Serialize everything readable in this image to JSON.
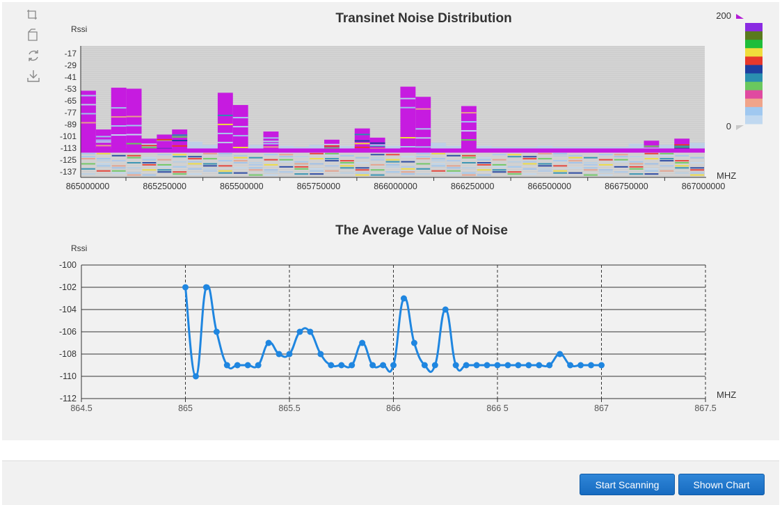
{
  "toolbox": {
    "icons": [
      "zoom-icon",
      "zoom-reset-icon",
      "restore-icon",
      "save-image-icon"
    ]
  },
  "colors": {
    "panel_bg": "#f1f1f1",
    "heat_bg": "#cdcdcd",
    "line_series": "#1f86e0",
    "button_bg": "#1d74c9",
    "heat_peak": "#c61be0"
  },
  "visual_map": {
    "max_label": "200",
    "min_label": "0",
    "colors": [
      "#8a2be2",
      "#5a7a1e",
      "#1ebd3a",
      "#f0dd3c",
      "#e8382c",
      "#1e3fa0",
      "#2a8fb0",
      "#6ac85e",
      "#e04aa0",
      "#f0a48a",
      "#a0c8f0",
      "#c0d8f0"
    ]
  },
  "chart_data": [
    {
      "type": "heatmap",
      "title": "Transinet Noise Distribution",
      "ylabel": "Rssi",
      "xlabel": "MHZ",
      "x_tick_labels": [
        "865000000",
        "865250000",
        "865500000",
        "865750000",
        "866000000",
        "866250000",
        "866500000",
        "866750000",
        "867000000"
      ],
      "y_tick_labels": [
        "-17",
        "-29",
        "-41",
        "-53",
        "-65",
        "-77",
        "-89",
        "-101",
        "-113",
        "-125",
        "-137"
      ],
      "x_range": [
        865.0,
        867.05
      ],
      "y_range": [
        -140,
        -11
      ],
      "baseline_rssi": -113,
      "bins": [
        {
          "f": 865.0,
          "top": -55
        },
        {
          "f": 865.05,
          "top": -93
        },
        {
          "f": 865.1,
          "top": -52
        },
        {
          "f": 865.15,
          "top": -53
        },
        {
          "f": 865.2,
          "top": -102
        },
        {
          "f": 865.25,
          "top": -98
        },
        {
          "f": 865.3,
          "top": -93
        },
        {
          "f": 865.35,
          "top": -105
        },
        {
          "f": 865.4,
          "top": -108
        },
        {
          "f": 865.45,
          "top": -57
        },
        {
          "f": 865.5,
          "top": -69
        },
        {
          "f": 865.55,
          "top": -108
        },
        {
          "f": 865.6,
          "top": -95
        },
        {
          "f": 865.65,
          "top": -109
        },
        {
          "f": 865.7,
          "top": -110
        },
        {
          "f": 865.75,
          "top": -108
        },
        {
          "f": 865.8,
          "top": -103
        },
        {
          "f": 865.85,
          "top": -109
        },
        {
          "f": 865.9,
          "top": -92
        },
        {
          "f": 865.95,
          "top": -101
        },
        {
          "f": 866.0,
          "top": -109
        },
        {
          "f": 866.05,
          "top": -51
        },
        {
          "f": 866.1,
          "top": -61
        },
        {
          "f": 866.15,
          "top": -106
        },
        {
          "f": 866.2,
          "top": -109
        },
        {
          "f": 866.25,
          "top": -70
        },
        {
          "f": 866.3,
          "top": -109
        },
        {
          "f": 866.35,
          "top": -110
        },
        {
          "f": 866.4,
          "top": -110
        },
        {
          "f": 866.45,
          "top": -110
        },
        {
          "f": 866.5,
          "top": -109
        },
        {
          "f": 866.55,
          "top": -110
        },
        {
          "f": 866.6,
          "top": -110
        },
        {
          "f": 866.65,
          "top": -110
        },
        {
          "f": 866.7,
          "top": -110
        },
        {
          "f": 866.75,
          "top": -110
        },
        {
          "f": 866.8,
          "top": -107
        },
        {
          "f": 866.85,
          "top": -104
        },
        {
          "f": 866.9,
          "top": -108
        },
        {
          "f": 866.95,
          "top": -102
        },
        {
          "f": 867.0,
          "top": -106
        }
      ]
    },
    {
      "type": "line",
      "title": "The Average Value of Noise",
      "ylabel": "Rssi",
      "xlabel": "MHZ",
      "x_tick_labels": [
        "864.5",
        "865",
        "865.5",
        "866",
        "866 5",
        "867",
        "867.5"
      ],
      "x_ticks": [
        864.5,
        865,
        865.5,
        866,
        866.5,
        867,
        867.5
      ],
      "y_ticks": [
        -100,
        -102,
        -104,
        -106,
        -108,
        -110,
        -112
      ],
      "xlim": [
        864.5,
        867.5
      ],
      "ylim": [
        -112,
        -100
      ],
      "grid": true,
      "x": [
        865.0,
        865.05,
        865.1,
        865.15,
        865.2,
        865.25,
        865.3,
        865.35,
        865.4,
        865.45,
        865.5,
        865.55,
        865.6,
        865.65,
        865.7,
        865.75,
        865.8,
        865.85,
        865.9,
        865.95,
        866.0,
        866.05,
        866.1,
        866.15,
        866.2,
        866.25,
        866.3,
        866.35,
        866.4,
        866.45,
        866.5,
        866.55,
        866.6,
        866.65,
        866.7,
        866.75,
        866.8,
        866.85,
        866.9,
        866.95,
        867.0
      ],
      "series": [
        {
          "name": "Average Noise",
          "values": [
            -102,
            -110,
            -102,
            -106,
            -109,
            -109,
            -109,
            -109,
            -107,
            -108,
            -108,
            -106,
            -106,
            -108,
            -109,
            -109,
            -109,
            -107,
            -109,
            -109,
            -109,
            -103,
            -107,
            -109,
            -109,
            -104,
            -109,
            -109,
            -109,
            -109,
            -109,
            -109,
            -109,
            -109,
            -109,
            -109,
            -108,
            -109,
            -109,
            -109,
            -109
          ]
        }
      ]
    }
  ],
  "buttons": {
    "start_label": "Start Scanning",
    "shown_label": "Shown Chart"
  }
}
